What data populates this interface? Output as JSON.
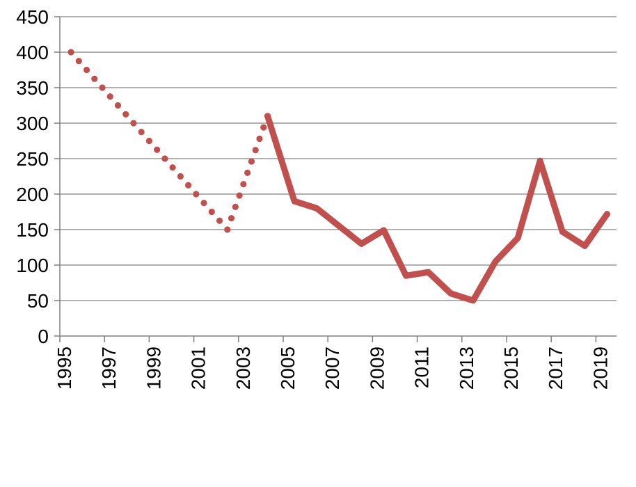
{
  "chart_data": {
    "type": "line",
    "title": "",
    "xlabel": "",
    "ylabel": "",
    "xlim": [
      1995,
      2019.5
    ],
    "ylim": [
      0,
      450
    ],
    "y_ticks": [
      0,
      50,
      100,
      150,
      200,
      250,
      300,
      350,
      400,
      450
    ],
    "y_tick_labels": [
      "0",
      "50",
      "100",
      "150",
      "200",
      "250",
      "300",
      "350",
      "400",
      "450"
    ],
    "x_ticks": [
      1995,
      1997,
      1999,
      2001,
      2003,
      2005,
      2007,
      2009,
      2011,
      2013,
      2015,
      2017,
      2019
    ],
    "x_tick_labels": [
      "1995",
      "1997",
      "1999",
      "2001",
      "2003",
      "2005",
      "2007",
      "2009",
      "2011",
      "2013",
      "2015",
      "2017",
      "2019"
    ],
    "grid": true,
    "legend": "none",
    "series": [
      {
        "style": "dotted",
        "color": "#C0504D",
        "x": [
          1995.5,
          2002.5,
          2004.3
        ],
        "y": [
          400,
          150,
          310
        ]
      },
      {
        "style": "solid",
        "color": "#C0504D",
        "x": [
          2004.3,
          2005.5,
          2006.5,
          2007.5,
          2008.5,
          2009.5,
          2010.5,
          2011.5,
          2012.5,
          2013.5,
          2014.5,
          2015.5,
          2016.5,
          2017.5,
          2018.5,
          2019.5
        ],
        "y": [
          310,
          190,
          180,
          155,
          130,
          149,
          85,
          90,
          60,
          50,
          105,
          138,
          247,
          147,
          127,
          172
        ]
      }
    ]
  }
}
